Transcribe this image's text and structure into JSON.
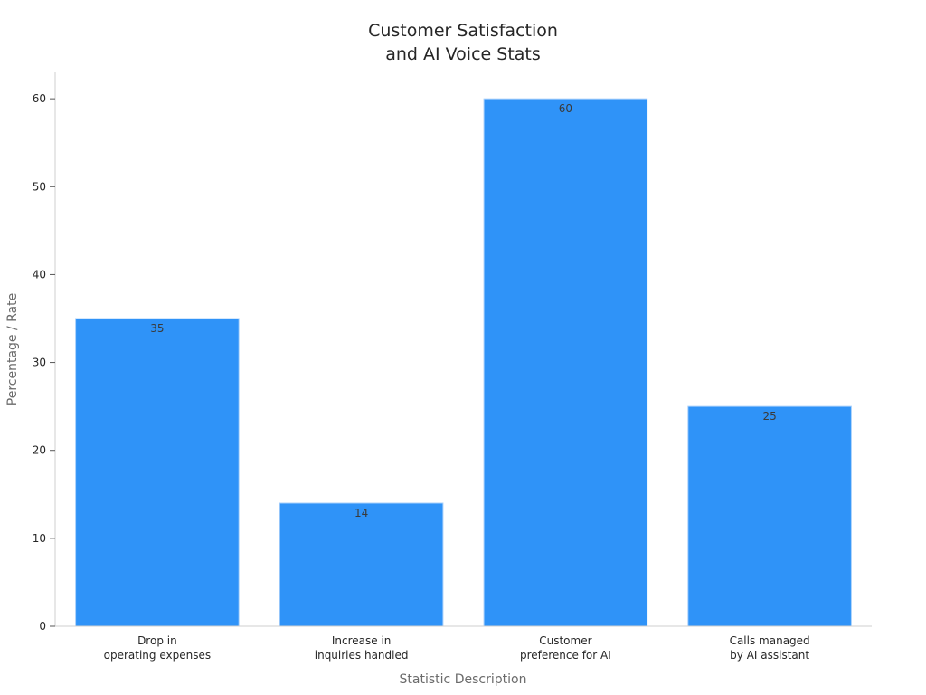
{
  "chart_data": {
    "type": "bar",
    "title": [
      "Customer Satisfaction",
      "and AI Voice Stats"
    ],
    "xlabel": "Statistic Description",
    "ylabel": "Percentage / Rate",
    "categories": [
      [
        "Drop in",
        "operating expenses"
      ],
      [
        "Increase in",
        "inquiries handled"
      ],
      [
        "Customer",
        "preference for AI"
      ],
      [
        "Calls managed",
        "by AI assistant"
      ]
    ],
    "values": [
      35,
      14,
      60,
      25
    ],
    "data_labels": [
      "35",
      "14",
      "60",
      "25"
    ],
    "ylim": [
      0,
      63
    ],
    "yticks": [
      0,
      10,
      20,
      30,
      40,
      50,
      60
    ],
    "grid": false,
    "legend": "none",
    "colors": {
      "bar": "#2f93f8",
      "bar_edge": "#a9d0fb"
    }
  }
}
